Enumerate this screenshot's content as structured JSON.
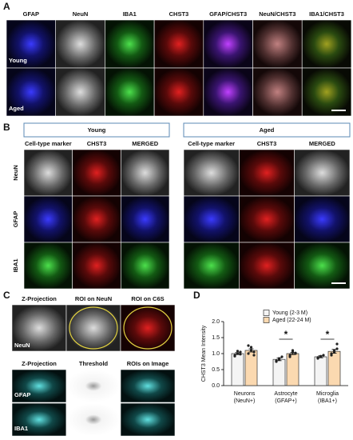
{
  "panel_a": {
    "label": "A",
    "columns": [
      "GFAP",
      "NeuN",
      "IBA1",
      "CHST3",
      "GFAP/CHST3",
      "NeuN/CHST3",
      "IBA1/CHST3"
    ],
    "rows": [
      "Young",
      "Aged"
    ]
  },
  "panel_b": {
    "label": "B",
    "groups": [
      {
        "title": "Young",
        "columns": [
          "Cell-type marker",
          "CHST3",
          "MERGED"
        ]
      },
      {
        "title": "Aged",
        "columns": [
          "Cell-type marker",
          "CHST3",
          "MERGED"
        ]
      }
    ],
    "rows": [
      "NeuN",
      "GFAP",
      "IBA1"
    ]
  },
  "panel_c": {
    "label": "C",
    "top_columns": [
      "Z-Projection",
      "ROI on NeuN",
      "ROI on C6S"
    ],
    "top_row": "NeuN",
    "bottom_columns": [
      "Z-Projection",
      "Threshold",
      "ROIs on Image"
    ],
    "bottom_rows": [
      "GFAP",
      "IBA1"
    ]
  },
  "chart_data": {
    "type": "bar",
    "label": "D",
    "ylabel": "CHST3 Mean Intensity",
    "categories": [
      [
        "Neurons",
        "(NeuN+)"
      ],
      [
        "Astrocyte",
        "(GFAP+)"
      ],
      [
        "Microglia",
        "(IBA1+)"
      ]
    ],
    "series": [
      {
        "name": "Young (2-3 M)",
        "color": "#f4f4f4",
        "values": [
          1.0,
          0.82,
          0.9
        ],
        "errors": [
          0.03,
          0.04,
          0.03
        ],
        "points": [
          [
            0.95,
            1.0,
            1.05,
            0.92,
            1.08,
            0.98
          ],
          [
            0.75,
            0.85,
            0.9,
            0.78,
            0.82
          ],
          [
            0.88,
            0.92,
            0.95,
            0.85,
            0.9
          ]
        ]
      },
      {
        "name": "Aged (22-24 M)",
        "color": "#fbd9b0",
        "values": [
          1.1,
          1.0,
          1.07
        ],
        "errors": [
          0.05,
          0.03,
          0.06
        ],
        "points": [
          [
            1.0,
            1.2,
            1.05,
            1.25,
            1.1,
            0.95
          ],
          [
            0.95,
            1.05,
            1.0,
            0.9,
            1.1,
            1.02
          ],
          [
            0.95,
            1.1,
            1.3,
            1.0,
            1.05,
            1.15
          ]
        ]
      }
    ],
    "significance": [
      null,
      "*",
      "*"
    ],
    "ylim": [
      0,
      2.0
    ],
    "yticks": [
      {
        "value": 0,
        "label": "0.0"
      },
      {
        "value": 0.5,
        "label": "0.5"
      },
      {
        "value": 1.0,
        "label": "1.0"
      },
      {
        "value": 1.5,
        "label": "1.5"
      },
      {
        "value": 2.0,
        "label": "2.0"
      }
    ]
  }
}
